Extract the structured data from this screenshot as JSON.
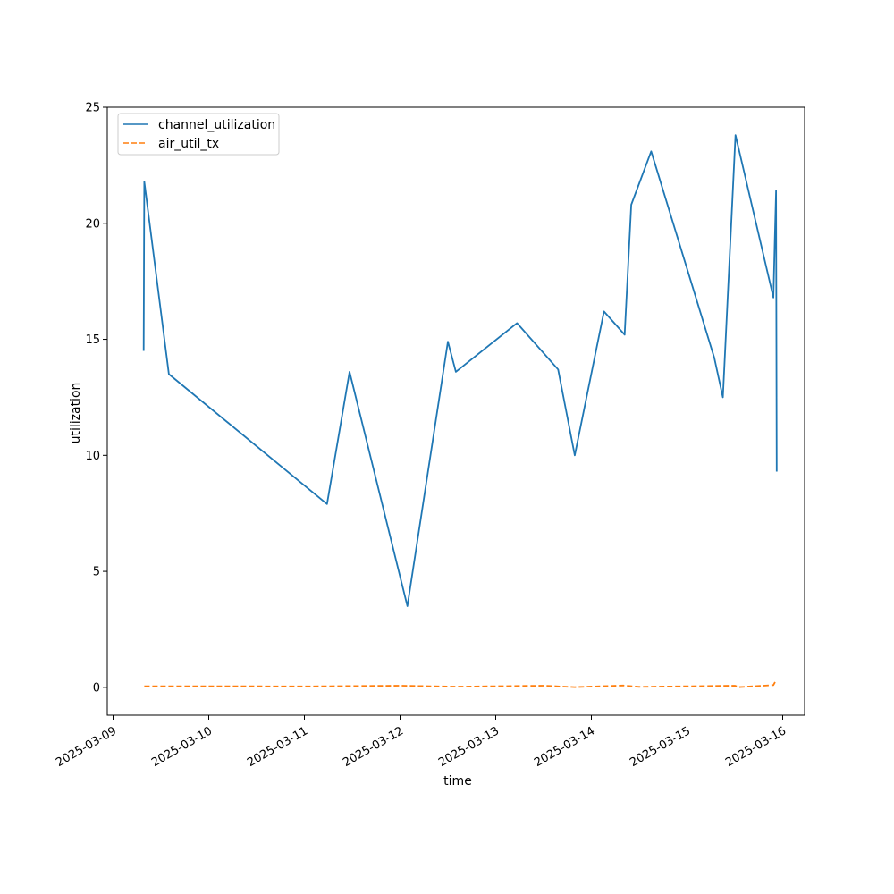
{
  "chart_data": {
    "type": "line",
    "title": "",
    "xlabel": "time",
    "ylabel": "utilization",
    "xlim": [
      "2025-03-09 00:00",
      "2025-03-16 00:00"
    ],
    "ylim": [
      -1.2,
      25
    ],
    "x_ticks": [
      "2025-03-09",
      "2025-03-10",
      "2025-03-11",
      "2025-03-12",
      "2025-03-13",
      "2025-03-14",
      "2025-03-15",
      "2025-03-16"
    ],
    "y_ticks": [
      0,
      5,
      10,
      15,
      20,
      25
    ],
    "grid": false,
    "legend_position": "top-left",
    "series": [
      {
        "name": "channel_utilization",
        "color": "#1f77b4",
        "style": "solid",
        "x": [
          "2025-03-09 07:40",
          "2025-03-09 07:50",
          "2025-03-09 14:00",
          "2025-03-11 05:40",
          "2025-03-11 11:20",
          "2025-03-12 01:50",
          "2025-03-12 12:00",
          "2025-03-12 14:00",
          "2025-03-13 05:20",
          "2025-03-13 15:40",
          "2025-03-13 19:50",
          "2025-03-14 03:10",
          "2025-03-14 08:20",
          "2025-03-14 10:00",
          "2025-03-14 15:00",
          "2025-03-15 06:50",
          "2025-03-15 09:00",
          "2025-03-15 12:10",
          "2025-03-15 21:40",
          "2025-03-15 22:00",
          "2025-03-15 22:20",
          "2025-03-15 22:30"
        ],
        "y": [
          14.5,
          21.8,
          13.5,
          7.9,
          13.6,
          3.5,
          14.9,
          13.6,
          15.7,
          13.7,
          10.0,
          16.2,
          15.2,
          20.8,
          23.1,
          14.2,
          12.5,
          23.8,
          16.8,
          19.2,
          21.4,
          9.3
        ]
      },
      {
        "name": "air_util_tx",
        "color": "#ff7f0e",
        "style": "dashed",
        "x": [
          "2025-03-09 07:50",
          "2025-03-10 00:00",
          "2025-03-11 00:00",
          "2025-03-12 00:00",
          "2025-03-12 14:00",
          "2025-03-13 12:00",
          "2025-03-13 19:50",
          "2025-03-14 08:00",
          "2025-03-14 12:00",
          "2025-03-15 12:00",
          "2025-03-15 13:00",
          "2025-03-15 21:40",
          "2025-03-15 22:10",
          "2025-03-15 22:20"
        ],
        "y": [
          0.05,
          0.05,
          0.04,
          0.07,
          0.03,
          0.07,
          0.01,
          0.08,
          0.02,
          0.07,
          0.01,
          0.1,
          0.25,
          0.2
        ]
      }
    ]
  }
}
